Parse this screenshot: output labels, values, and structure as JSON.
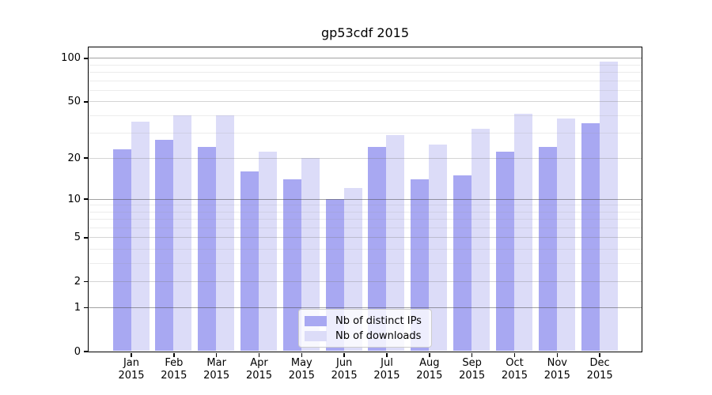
{
  "chart_data": {
    "type": "bar",
    "title": "gp53cdf 2015",
    "categories": [
      "Jan",
      "Feb",
      "Mar",
      "Apr",
      "May",
      "Jun",
      "Jul",
      "Aug",
      "Sep",
      "Oct",
      "Nov",
      "Dec"
    ],
    "category_year": "2015",
    "series": [
      {
        "name": "Nb of distinct IPs",
        "color": "#a8a8f2",
        "values": [
          23,
          27,
          24,
          16,
          14,
          10,
          24,
          14,
          15,
          22,
          24,
          35
        ]
      },
      {
        "name": "Nb of downloads",
        "color": "#dcdcf8",
        "values": [
          36,
          40,
          40,
          22,
          20,
          12,
          29,
          25,
          32,
          41,
          38,
          95
        ]
      }
    ],
    "xlabel": "",
    "ylabel": "",
    "y_scale": "log1p",
    "ylim": [
      0,
      110
    ],
    "y_ticks": [
      0,
      1,
      2,
      5,
      10,
      20,
      50,
      100
    ],
    "y_mid_gridlines": [
      2,
      5,
      20,
      50
    ],
    "y_decade_gridlines": [
      1,
      10,
      100
    ],
    "y_minor_gridlines": [
      3,
      4,
      6,
      7,
      8,
      9,
      30,
      40,
      60,
      70,
      80,
      90
    ],
    "grid": true,
    "legend_position": "inside-bottom-center",
    "colors": {
      "axis": "#000000",
      "grid_decade": "#a6a6a6",
      "grid_mid": "#cdcdcd",
      "grid_minor": "#e4e4e4",
      "legend_border": "#cccccc",
      "legend_background": "#ffffff"
    }
  }
}
